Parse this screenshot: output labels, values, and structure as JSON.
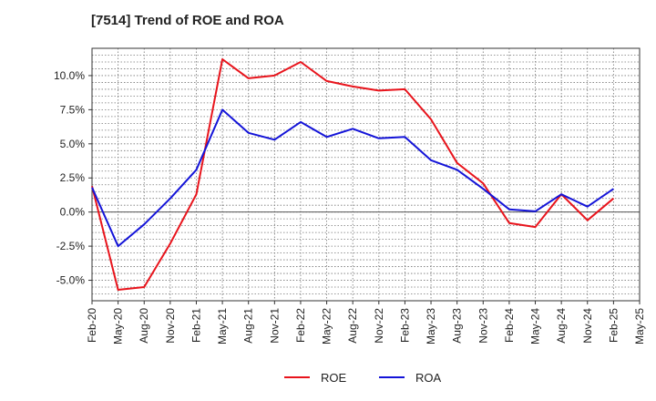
{
  "chart_data": {
    "type": "line",
    "title": "[7514]  Trend of ROE and ROA",
    "xlabel": "",
    "ylabel": "",
    "x": [
      "Feb-20",
      "May-20",
      "Aug-20",
      "Nov-20",
      "Feb-21",
      "May-21",
      "Aug-21",
      "Nov-21",
      "Feb-22",
      "May-22",
      "Aug-22",
      "Nov-22",
      "Feb-23",
      "May-23",
      "Aug-23",
      "Nov-23",
      "Feb-24",
      "May-24",
      "Aug-24",
      "Nov-24",
      "Feb-25",
      "May-25"
    ],
    "ylim": [
      -6.5,
      12.0
    ],
    "yticks": [
      -5.0,
      -2.5,
      0.0,
      2.5,
      5.0,
      7.5,
      10.0
    ],
    "ytick_labels": [
      "-5.0%",
      "-2.5%",
      "0.0%",
      "2.5%",
      "5.0%",
      "7.5%",
      "10.0%"
    ],
    "grid": true,
    "legend_position": "bottom-center",
    "series": [
      {
        "name": "ROE",
        "color": "#e8141c",
        "values": [
          1.9,
          -5.7,
          -5.5,
          -2.3,
          1.3,
          11.2,
          9.8,
          10.0,
          11.0,
          9.6,
          9.2,
          8.9,
          9.0,
          6.8,
          3.6,
          2.1,
          -0.8,
          -1.1,
          1.3,
          -0.6,
          1.0,
          null
        ]
      },
      {
        "name": "ROA",
        "color": "#1414d8",
        "values": [
          1.8,
          -2.5,
          -0.9,
          1.0,
          3.1,
          7.5,
          5.8,
          5.3,
          6.6,
          5.5,
          6.1,
          5.4,
          5.5,
          3.8,
          3.1,
          1.7,
          0.2,
          0.05,
          1.3,
          0.4,
          1.7,
          null
        ]
      }
    ]
  }
}
